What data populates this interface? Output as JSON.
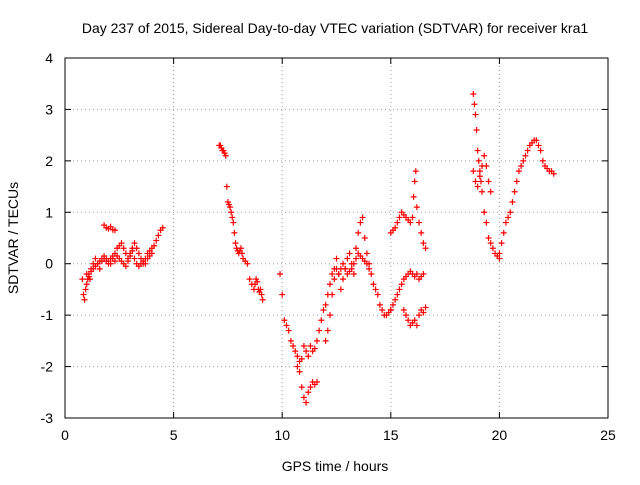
{
  "chart_data": {
    "type": "scatter",
    "title": "Day 237 of 2015, Sidereal Day-to-day VTEC variation (SDTVAR) for receiver kra1",
    "xlabel": "GPS time / hours",
    "ylabel": "SDTVAR / TECUs",
    "xlim": [
      0,
      25
    ],
    "ylim": [
      -3,
      4
    ],
    "xticks": [
      0,
      5,
      10,
      15,
      20,
      25
    ],
    "yticks": [
      -3,
      -2,
      -1,
      0,
      1,
      2,
      3,
      4
    ],
    "xtick_labels": [
      "0",
      "5",
      "10",
      "15",
      "20",
      "25"
    ],
    "ytick_labels": [
      "-3",
      "-2",
      "-1",
      "0",
      "1",
      "2",
      "3",
      "4"
    ],
    "grid": true,
    "marker": "plus",
    "series": [
      {
        "name": "SDTVAR",
        "color": "#ff0000",
        "segments": [
          {
            "x": [
              0.8,
              0.85,
              0.9,
              0.95,
              1.0,
              1.05,
              1.1,
              1.15,
              1.2,
              1.3,
              1.4,
              1.5,
              1.6,
              1.7,
              1.8,
              1.9,
              2.0,
              2.1,
              2.2,
              2.3,
              2.4,
              2.5,
              2.6,
              2.7,
              2.8,
              2.9,
              3.0,
              3.1,
              3.2,
              3.3,
              3.4,
              3.5,
              3.6,
              3.7,
              3.8,
              3.9,
              4.0,
              4.1,
              4.2,
              4.3,
              4.4,
              4.5
            ],
            "y": [
              -0.3,
              -0.6,
              -0.7,
              -0.5,
              -0.4,
              -0.3,
              -0.2,
              -0.3,
              -0.1,
              0.0,
              0.1,
              0.0,
              -0.1,
              0.05,
              0.1,
              0.05,
              0.0,
              0.1,
              0.15,
              0.2,
              0.3,
              0.35,
              0.4,
              0.3,
              0.2,
              0.1,
              0.2,
              0.3,
              0.4,
              0.3,
              0.2,
              0.1,
              0.0,
              0.1,
              0.2,
              0.25,
              0.3,
              0.35,
              0.45,
              0.55,
              0.65,
              0.7
            ]
          },
          {
            "x": [
              1.8,
              1.9,
              2.0,
              2.1,
              2.2,
              2.3
            ],
            "y": [
              0.75,
              0.7,
              0.68,
              0.72,
              0.66,
              0.65
            ]
          },
          {
            "x": [
              1.0,
              1.1,
              1.2,
              1.3,
              1.4,
              1.5,
              1.6,
              1.7,
              1.8,
              1.9,
              2.0,
              2.1,
              2.2,
              2.3,
              2.4,
              2.5,
              2.6,
              2.7,
              2.8,
              2.9,
              3.0,
              3.1,
              3.2,
              3.3,
              3.4,
              3.5,
              3.6,
              3.7,
              3.8,
              3.9,
              4.0
            ],
            "y": [
              -0.2,
              -0.25,
              -0.15,
              -0.1,
              -0.05,
              0.0,
              0.05,
              0.1,
              0.15,
              0.1,
              0.05,
              0.0,
              0.1,
              0.05,
              0.15,
              0.1,
              0.05,
              0.0,
              -0.05,
              0.05,
              0.15,
              0.25,
              0.1,
              0.0,
              -0.05,
              0.0,
              0.05,
              0.0,
              0.1,
              0.15,
              0.2
            ]
          },
          {
            "x": [
              7.1,
              7.15,
              7.2,
              7.25,
              7.3,
              7.35,
              7.4,
              7.45,
              7.5,
              7.55,
              7.6,
              7.65,
              7.7,
              7.75,
              7.8,
              7.85,
              7.9,
              7.95,
              8.0,
              8.05,
              8.1,
              8.15,
              8.2,
              8.3,
              8.4,
              8.5,
              8.6,
              8.7,
              8.75,
              8.8,
              8.85,
              8.9,
              8.95,
              9.0,
              9.05,
              9.1
            ],
            "y": [
              2.3,
              2.3,
              2.25,
              2.2,
              2.2,
              2.15,
              2.1,
              1.5,
              1.2,
              1.15,
              1.1,
              1.0,
              0.9,
              0.8,
              0.6,
              0.4,
              0.3,
              0.25,
              0.2,
              0.25,
              0.3,
              0.2,
              0.1,
              0.05,
              0.0,
              -0.3,
              -0.4,
              -0.5,
              -0.4,
              -0.3,
              -0.35,
              -0.5,
              -0.55,
              -0.5,
              -0.6,
              -0.7
            ]
          },
          {
            "x": [
              9.9,
              10.0,
              10.1,
              10.2,
              10.3,
              10.4,
              10.5,
              10.6,
              10.7,
              10.8,
              10.9,
              11.0,
              11.1,
              11.2,
              11.3,
              11.4,
              11.5,
              11.6,
              11.7,
              11.8,
              11.9,
              12.0,
              12.1,
              12.2,
              12.3,
              12.4,
              12.5,
              12.6,
              12.7,
              12.8,
              12.9,
              13.0,
              13.1,
              13.2,
              13.3,
              13.4,
              13.5,
              13.6,
              13.7,
              13.8,
              13.9,
              14.0,
              14.1,
              14.2,
              14.3,
              14.4,
              14.5,
              14.6,
              14.7,
              14.8,
              14.9,
              15.0
            ],
            "y": [
              -0.2,
              -0.6,
              -1.1,
              -1.2,
              -1.3,
              -1.5,
              -1.6,
              -1.7,
              -1.8,
              -1.9,
              -1.85,
              -1.6,
              -1.7,
              -1.8,
              -1.6,
              -1.7,
              -1.65,
              -1.5,
              -1.3,
              -1.1,
              -0.9,
              -0.8,
              -0.6,
              -0.4,
              -0.2,
              -0.1,
              0.1,
              -0.2,
              -0.5,
              -0.3,
              -0.1,
              0.1,
              0.2,
              0.0,
              -0.2,
              0.3,
              0.6,
              0.8,
              0.9,
              0.5,
              0.2,
              0.0,
              -0.2,
              -0.4,
              -0.5,
              -0.6,
              -0.8,
              -0.9,
              -1.0,
              -1.0,
              -0.95,
              -0.9
            ]
          },
          {
            "x": [
              10.7,
              10.8,
              10.9,
              11.0,
              11.1,
              11.2,
              11.3,
              11.4,
              11.5,
              11.6
            ],
            "y": [
              -2.0,
              -2.1,
              -2.4,
              -2.6,
              -2.7,
              -2.5,
              -2.4,
              -2.3,
              -2.35,
              -2.3
            ]
          },
          {
            "x": [
              12.0,
              12.1,
              12.2,
              12.3,
              12.4,
              12.5,
              12.6,
              12.7,
              12.8,
              12.9,
              13.0,
              13.1,
              13.2,
              13.3,
              13.4,
              13.5,
              13.6,
              13.7,
              13.8,
              13.9,
              14.0
            ],
            "y": [
              -1.5,
              -1.3,
              -1.0,
              -0.6,
              -0.3,
              -0.1,
              -0.2,
              -0.1,
              0.0,
              -0.1,
              -0.2,
              -0.15,
              -0.1,
              0.0,
              0.1,
              0.2,
              0.15,
              0.1,
              0.05,
              0.0,
              -0.1
            ]
          },
          {
            "x": [
              15.0,
              15.1,
              15.2,
              15.3,
              15.4,
              15.5,
              15.6,
              15.7,
              15.8,
              15.9,
              16.0,
              16.1,
              16.2,
              16.3,
              16.4,
              16.5
            ],
            "y": [
              -0.9,
              -0.8,
              -0.7,
              -0.6,
              -0.5,
              -0.4,
              -0.3,
              -0.25,
              -0.2,
              -0.15,
              -0.2,
              -0.25,
              -0.2,
              -0.3,
              -0.25,
              -0.2
            ]
          },
          {
            "x": [
              15.0,
              15.1,
              15.2,
              15.3,
              15.4,
              15.5,
              15.6,
              15.7,
              15.8,
              15.9,
              16.0,
              16.05,
              16.1,
              16.15,
              16.2,
              16.3,
              16.4,
              16.5,
              16.6
            ],
            "y": [
              0.6,
              0.65,
              0.7,
              0.8,
              0.9,
              1.0,
              0.95,
              0.9,
              0.85,
              0.8,
              0.9,
              1.3,
              1.6,
              1.8,
              1.1,
              0.8,
              0.6,
              0.4,
              0.3
            ]
          },
          {
            "x": [
              15.6,
              15.7,
              15.8,
              15.9,
              16.0,
              16.1,
              16.2,
              16.3,
              16.4,
              16.5,
              16.6
            ],
            "y": [
              -0.9,
              -1.0,
              -1.1,
              -1.2,
              -1.15,
              -1.1,
              -1.2,
              -1.0,
              -0.9,
              -0.95,
              -0.85
            ]
          },
          {
            "x": [
              18.8,
              18.85,
              18.9,
              18.95,
              19.0,
              19.05,
              19.1,
              19.15,
              19.2,
              19.3,
              19.4,
              19.5,
              19.6,
              19.7,
              19.8,
              19.9,
              20.0
            ],
            "y": [
              3.3,
              3.1,
              2.9,
              2.6,
              2.2,
              2.0,
              1.8,
              1.6,
              1.4,
              1.0,
              0.8,
              0.5,
              0.4,
              0.3,
              0.2,
              0.15,
              0.1
            ]
          },
          {
            "x": [
              18.8,
              18.9,
              19.0,
              19.1,
              19.2,
              19.3,
              19.4,
              19.5,
              19.6
            ],
            "y": [
              1.8,
              1.6,
              1.5,
              1.7,
              1.9,
              2.1,
              1.9,
              1.6,
              1.4
            ]
          },
          {
            "x": [
              20.0,
              20.1,
              20.2,
              20.3,
              20.4,
              20.5,
              20.6,
              20.7,
              20.8,
              20.9,
              21.0,
              21.1,
              21.2,
              21.3,
              21.4,
              21.5,
              21.6,
              21.7,
              21.8,
              21.9,
              22.0,
              22.1,
              22.2,
              22.3,
              22.4,
              22.5
            ],
            "y": [
              0.2,
              0.4,
              0.6,
              0.8,
              0.9,
              1.0,
              1.2,
              1.4,
              1.6,
              1.8,
              1.9,
              2.0,
              2.1,
              2.2,
              2.3,
              2.35,
              2.4,
              2.4,
              2.3,
              2.2,
              2.0,
              1.9,
              1.85,
              1.8,
              1.8,
              1.75
            ]
          }
        ]
      }
    ]
  }
}
